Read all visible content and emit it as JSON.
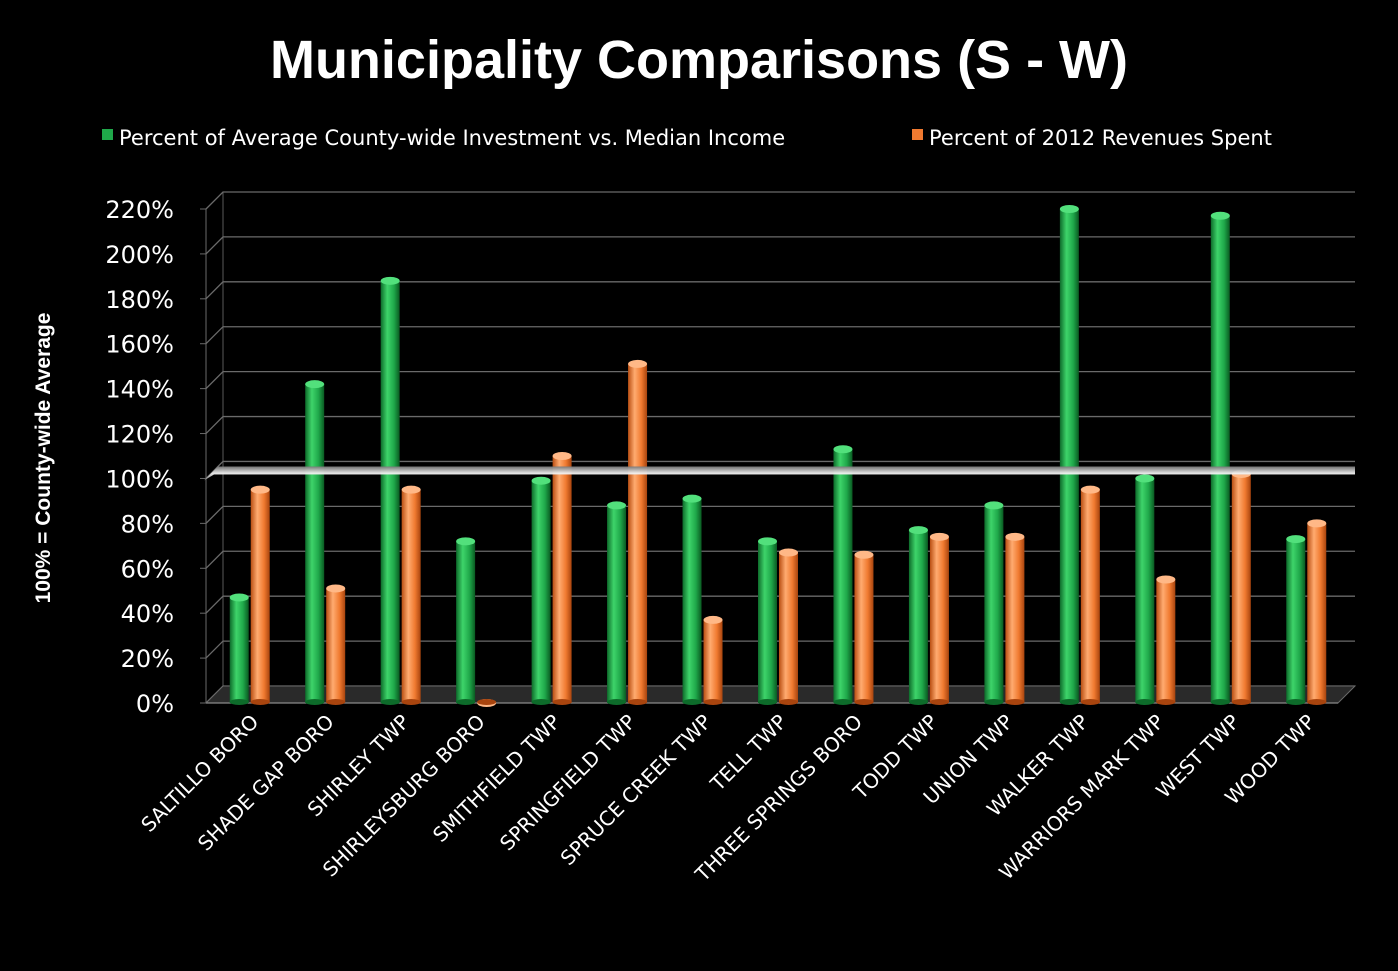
{
  "chart_data": {
    "type": "bar",
    "title": "Municipality Comparisons (S - W)",
    "ylabel": "100% = County-wide Average",
    "xlabel": "",
    "ylim": [
      0,
      220
    ],
    "y_ticks": [
      0,
      20,
      40,
      60,
      80,
      100,
      120,
      140,
      160,
      180,
      200,
      220
    ],
    "y_tick_suffix": "%",
    "grid": true,
    "legend_position": "top",
    "reference_line": {
      "value": 100
    },
    "categories": [
      "SALTILLO BORO",
      "SHADE GAP BORO",
      "SHIRLEY TWP",
      "SHIRLEYSBURG BORO",
      "SMITHFIELD TWP",
      "SPRINGFIELD TWP",
      "SPRUCE CREEK TWP",
      "TELL TWP",
      "THREE SPRINGS BORO",
      "TODD TWP",
      "UNION TWP",
      "WALKER TWP",
      "WARRIORS MARK TWP",
      "WEST TWP",
      "WOOD TWP"
    ],
    "series": [
      {
        "name": "Percent of Average County-wide Investment vs. Median Income",
        "color": "#1fa84a",
        "values": [
          47,
          142,
          188,
          72,
          99,
          88,
          91,
          72,
          113,
          77,
          88,
          220,
          100,
          217,
          73
        ]
      },
      {
        "name": "Percent of 2012 Revenues Spent",
        "color": "#f07a30",
        "values": [
          95,
          51,
          95,
          0,
          110,
          151,
          37,
          67,
          66,
          74,
          74,
          95,
          55,
          102,
          80
        ]
      }
    ]
  }
}
